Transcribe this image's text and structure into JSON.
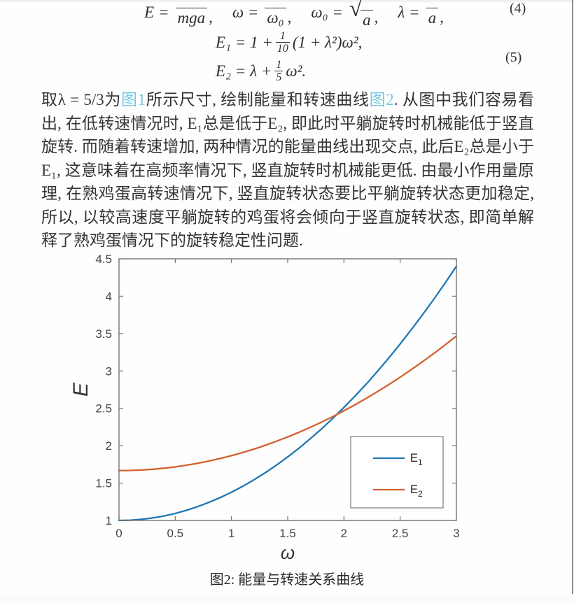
{
  "page": {
    "caption": "图2: 能量与转速关系曲线"
  },
  "equations": {
    "eq4": {
      "tag": "(4)",
      "terms": [
        {
          "lhs": "E",
          "sup": "*",
          "den": "mga",
          "sep": ","
        },
        {
          "lhs": "ω",
          "sup": "*",
          "den": "ω₀",
          "sep": ","
        },
        {
          "lhs": "ω₀ =",
          "sqrt": "√",
          "den": "a",
          "sep": ","
        },
        {
          "lhs": "λ",
          "den": "a",
          "sep": ","
        }
      ],
      "eq_sign": "="
    },
    "eq5": {
      "tag": "(5)",
      "line1": {
        "pre": "E₁ = 1 +",
        "num": "1",
        "den": "10",
        "post": "(1 + λ²)ω²,"
      },
      "line2": {
        "pre": "E₂ = λ +",
        "num": "1",
        "den": "5",
        "post": "ω²."
      }
    }
  },
  "paragraph": {
    "s1": "取λ = 5/3为",
    "link1": "图1",
    "s2": "所示尺寸, 绘制能量和转速曲线",
    "link2": "图2",
    "s3": ". 从图中我们容易看出, 在低转速情况时, E₁总是低于E₂, 即此时平躺旋转时机械能低于竖直旋转. 而随着转速增加, 两种情况的能量曲线出现交点, 此后E₂总是小于E₁, 这意味着在高频率情况下, 竖直旋转时机械能更低. 由最小作用量原理, 在熟鸡蛋高转速情况下, 竖直旋转状态要比平躺旋转状态更加稳定, 所以, 以较高速度平躺旋转的鸡蛋将会倾向于竖直旋转状态, 即简单解释了熟鸡蛋情况下的旋转稳定性问题.",
    "link_color": "#74c9e4"
  },
  "chart_data": {
    "type": "line",
    "xlabel": "ω",
    "ylabel": "E",
    "xlim": [
      0,
      3
    ],
    "ylim": [
      1,
      4.5
    ],
    "xticks": [
      0,
      0.5,
      1,
      1.5,
      2,
      2.5,
      3
    ],
    "yticks": [
      1,
      1.5,
      2,
      2.5,
      3,
      3.5,
      4,
      4.5
    ],
    "grid": false,
    "legend_position": "lower-right-inside",
    "x": [
      0,
      0.1,
      0.2,
      0.3,
      0.4,
      0.5,
      0.6,
      0.7,
      0.8,
      0.9,
      1.0,
      1.1,
      1.2,
      1.3,
      1.4,
      1.5,
      1.6,
      1.7,
      1.8,
      1.9,
      2.0,
      2.1,
      2.2,
      2.3,
      2.4,
      2.5,
      2.6,
      2.7,
      2.8,
      2.9,
      3.0
    ],
    "series": [
      {
        "name": "E_1",
        "legend_main": "E",
        "legend_sub": "1",
        "color": "#2077b4",
        "values": [
          1.0,
          1.004,
          1.015,
          1.034,
          1.06,
          1.094,
          1.136,
          1.185,
          1.242,
          1.306,
          1.378,
          1.457,
          1.544,
          1.638,
          1.74,
          1.85,
          1.967,
          2.092,
          2.224,
          2.364,
          2.511,
          2.666,
          2.828,
          2.998,
          3.176,
          3.361,
          3.554,
          3.754,
          3.962,
          4.177,
          4.4
        ]
      },
      {
        "name": "E_2",
        "legend_main": "E",
        "legend_sub": "2",
        "color": "#d2612e",
        "values": [
          1.667,
          1.669,
          1.675,
          1.685,
          1.699,
          1.717,
          1.739,
          1.765,
          1.795,
          1.829,
          1.867,
          1.909,
          1.955,
          2.005,
          2.059,
          2.117,
          2.179,
          2.245,
          2.315,
          2.389,
          2.467,
          2.549,
          2.635,
          2.725,
          2.819,
          2.917,
          3.019,
          3.125,
          3.235,
          3.349,
          3.467
        ]
      }
    ]
  }
}
